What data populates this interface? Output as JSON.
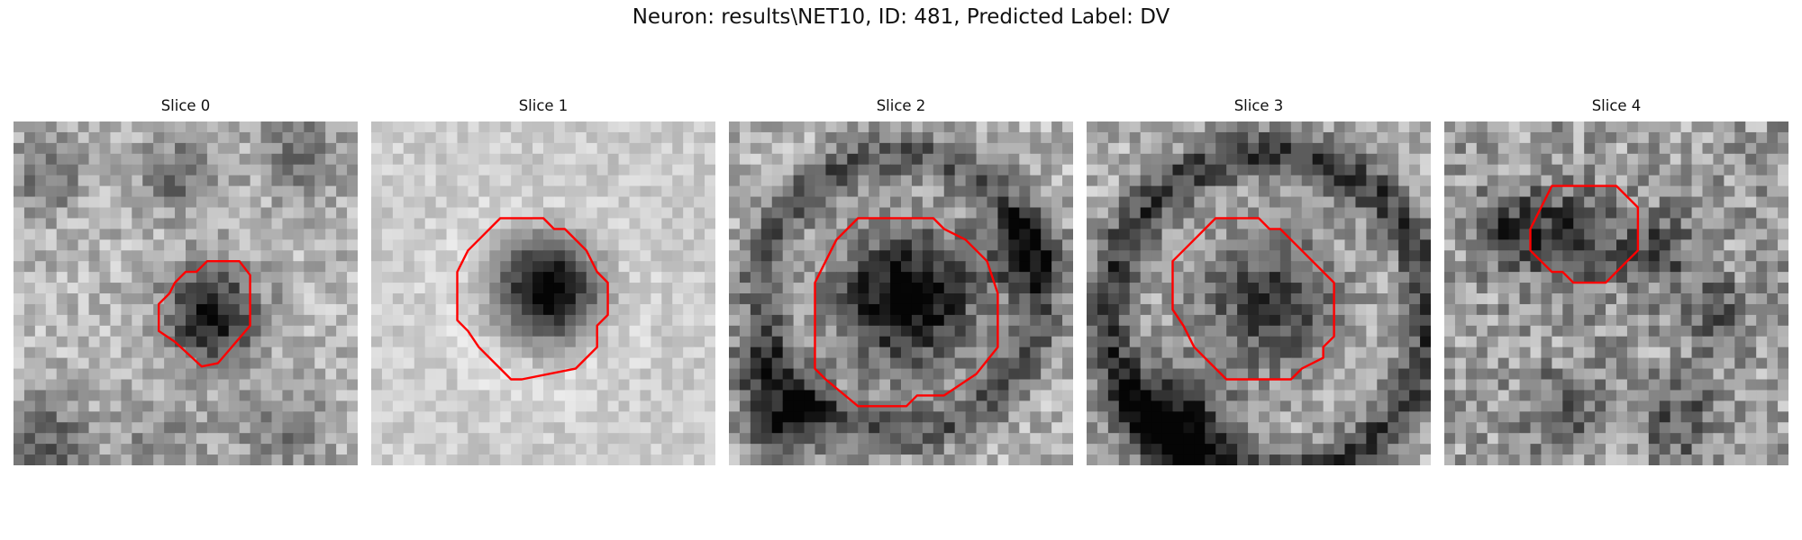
{
  "figure": {
    "title": "Neuron: results\\NET10, ID: 481, Predicted Label: DV"
  },
  "panels": [
    {
      "title": "Slice 0"
    },
    {
      "title": "Slice 1"
    },
    {
      "title": "Slice 2"
    },
    {
      "title": "Slice 3"
    },
    {
      "title": "Slice 4"
    }
  ],
  "contour_color": "#ff0000",
  "colormap": "gray"
}
